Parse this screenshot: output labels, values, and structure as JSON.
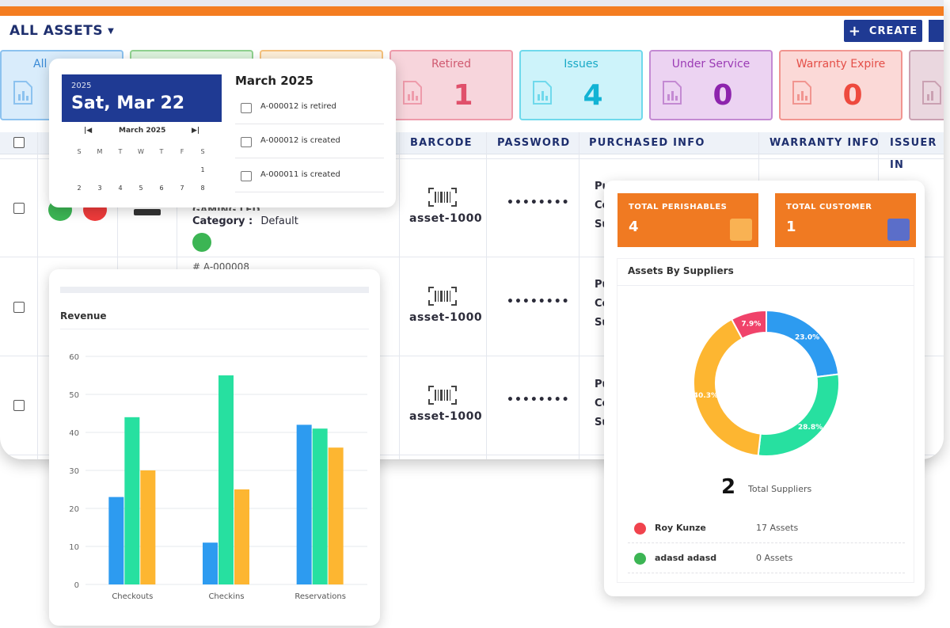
{
  "header": {
    "title": "ALL ASSETS",
    "create_label": "CREATE"
  },
  "cards": [
    {
      "label": "All",
      "value": ""
    },
    {
      "label": "",
      "value": ""
    },
    {
      "label": "",
      "value": ""
    },
    {
      "label": "Retired",
      "value": "1"
    },
    {
      "label": "Issues",
      "value": "4"
    },
    {
      "label": "Under Service",
      "value": "0"
    },
    {
      "label": "Warranty Expire",
      "value": "0"
    },
    {
      "label": "",
      "value": ""
    }
  ],
  "table": {
    "columns": [
      "BARCODE",
      "PASSWORD",
      "PURCHASED INFO",
      "WARRANTY INFO",
      "ISSUER IN"
    ],
    "rows": [
      {
        "barcode": "asset-1000",
        "password": "••••••••",
        "category_label": "Category :",
        "category_value": "Default",
        "name_partial": "GAMING LED"
      },
      {
        "barcode": "asset-1000",
        "password": "••••••••",
        "id_partial": "# A-000008"
      },
      {
        "barcode": "asset-1000",
        "password": "••••••••"
      }
    ],
    "purchased_partial": [
      "Pu",
      "Co",
      "Su"
    ]
  },
  "calendar": {
    "year": "2025",
    "date": "Sat, Mar 22",
    "month_label": "March 2025",
    "weekdays": [
      "S",
      "M",
      "T",
      "W",
      "T",
      "F",
      "S"
    ],
    "week1": [
      "",
      "",
      "",
      "",
      "",
      "",
      "1"
    ],
    "week2": [
      "2",
      "3",
      "4",
      "5",
      "6",
      "7",
      "8"
    ],
    "events_title": "March 2025",
    "events": [
      "A-000012 is retired",
      "A-000012 is created",
      "A-000011 is created"
    ]
  },
  "revenue": {
    "title": "Revenue"
  },
  "chart_data": {
    "type": "bar",
    "title": "Revenue",
    "categories": [
      "Checkouts",
      "Checkins",
      "Reservations"
    ],
    "series": [
      {
        "values": [
          23,
          11,
          42
        ],
        "color": "#2d9bf0"
      },
      {
        "values": [
          44,
          55,
          41
        ],
        "color": "#27e0a0"
      },
      {
        "values": [
          30,
          25,
          36
        ],
        "color": "#fdb631"
      }
    ],
    "yticks": [
      0,
      10,
      20,
      30,
      40,
      50,
      60
    ],
    "ylim": [
      0,
      60
    ],
    "grid": true
  },
  "summary": {
    "perishables_label": "TOTAL PERISHABLES",
    "perishables_value": "4",
    "customer_label": "TOTAL CUSTOMER",
    "customer_value": "1"
  },
  "suppliers": {
    "title": "Assets By Suppliers",
    "total": "2",
    "total_label": "Total Suppliers",
    "donut": [
      {
        "label": "23.0%",
        "value": 23.0,
        "color": "#2d9bf0"
      },
      {
        "label": "28.8%",
        "value": 28.8,
        "color": "#27e0a0"
      },
      {
        "label": "40.3%",
        "value": 40.3,
        "color": "#fdb631"
      },
      {
        "label": "7.9%",
        "value": 7.9,
        "color": "#f0436a"
      }
    ],
    "list": [
      {
        "name": "Roy Kunze",
        "count": "17 Assets",
        "color": "#f0434d"
      },
      {
        "name": "adasd adasd",
        "count": "0 Assets",
        "color": "#3cb554"
      }
    ]
  }
}
